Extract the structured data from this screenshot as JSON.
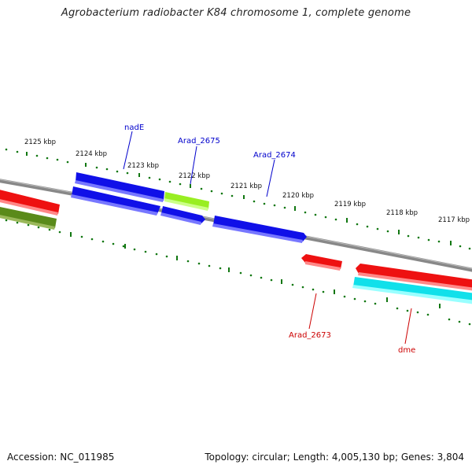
{
  "title": "Agrobacterium radiobacter K84 chromosome 1, complete genome",
  "footer": {
    "accession": "Accession: NC_011985",
    "summary": "Topology: circular; Length: 4,005,130 bp; Genes: 3,804"
  },
  "ticks": [
    "2125 kbp",
    "2124 kbp",
    "2123 kbp",
    "2122 kbp",
    "2121 kbp",
    "2120 kbp",
    "2119 kbp",
    "2118 kbp",
    "2117 kbp"
  ],
  "gene_labels": {
    "nadE": "nadE",
    "arad2675": "Arad_2675",
    "arad2674": "Arad_2674",
    "arad2673": "Arad_2673",
    "dme": "dme"
  },
  "colors": {
    "blue": "#1010e8",
    "lime": "#99ee22",
    "red": "#ee1111",
    "olive": "#5a8a1a",
    "cyan": "#11e0ea",
    "tick": "#117711",
    "backbone": "#888888",
    "label_blue": "#0000cc",
    "label_red": "#cc0000"
  }
}
